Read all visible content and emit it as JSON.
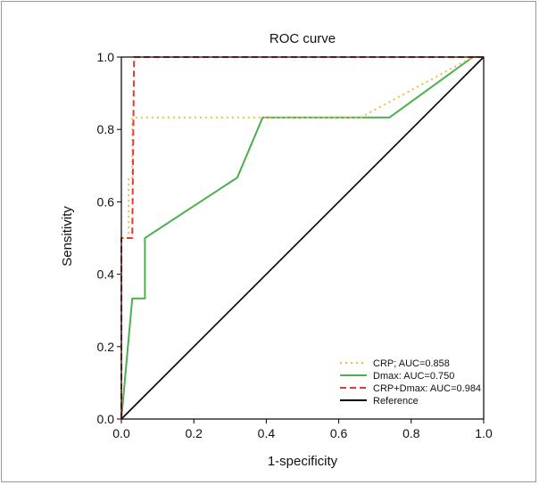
{
  "chart_data": {
    "type": "line",
    "title": "ROC curve",
    "xlabel": "1-specificity",
    "ylabel": "Sensitivity",
    "xlim": [
      0.0,
      1.0
    ],
    "ylim": [
      0.0,
      1.0
    ],
    "x_ticks": [
      "0.0",
      "0.2",
      "0.4",
      "0.6",
      "0.8",
      "1.0"
    ],
    "y_ticks": [
      "0.0",
      "0.2",
      "0.4",
      "0.6",
      "0.8",
      "1.0"
    ],
    "grid": false,
    "legend_position": "bottom-right",
    "series": [
      {
        "name": "CRP; AUC=0.858",
        "color": "#f5b942",
        "dash": "dotted",
        "points": [
          [
            0,
            0
          ],
          [
            0,
            0.5
          ],
          [
            0.02,
            0.5
          ],
          [
            0.02,
            0.667
          ],
          [
            0.03,
            0.667
          ],
          [
            0.03,
            0.833
          ],
          [
            0.66,
            0.833
          ],
          [
            0.97,
            1.0
          ],
          [
            1.0,
            1.0
          ]
        ]
      },
      {
        "name": "Dmax: AUC=0.750",
        "color": "#4caf50",
        "dash": "solid",
        "points": [
          [
            0,
            0
          ],
          [
            0.03,
            0.333
          ],
          [
            0.065,
            0.333
          ],
          [
            0.065,
            0.5
          ],
          [
            0.32,
            0.667
          ],
          [
            0.39,
            0.833
          ],
          [
            0.74,
            0.833
          ],
          [
            0.97,
            1.0
          ],
          [
            1.0,
            1.0
          ]
        ]
      },
      {
        "name": "CRP+Dmax: AUC=0.984",
        "color": "#e53935",
        "dash": "dashed",
        "points": [
          [
            0,
            0
          ],
          [
            0,
            0.5
          ],
          [
            0.03,
            0.5
          ],
          [
            0.035,
            1.0
          ],
          [
            1.0,
            1.0
          ]
        ]
      },
      {
        "name": "Reference",
        "color": "#000000",
        "dash": "solid",
        "points": [
          [
            0,
            0
          ],
          [
            1,
            1
          ]
        ]
      }
    ]
  }
}
